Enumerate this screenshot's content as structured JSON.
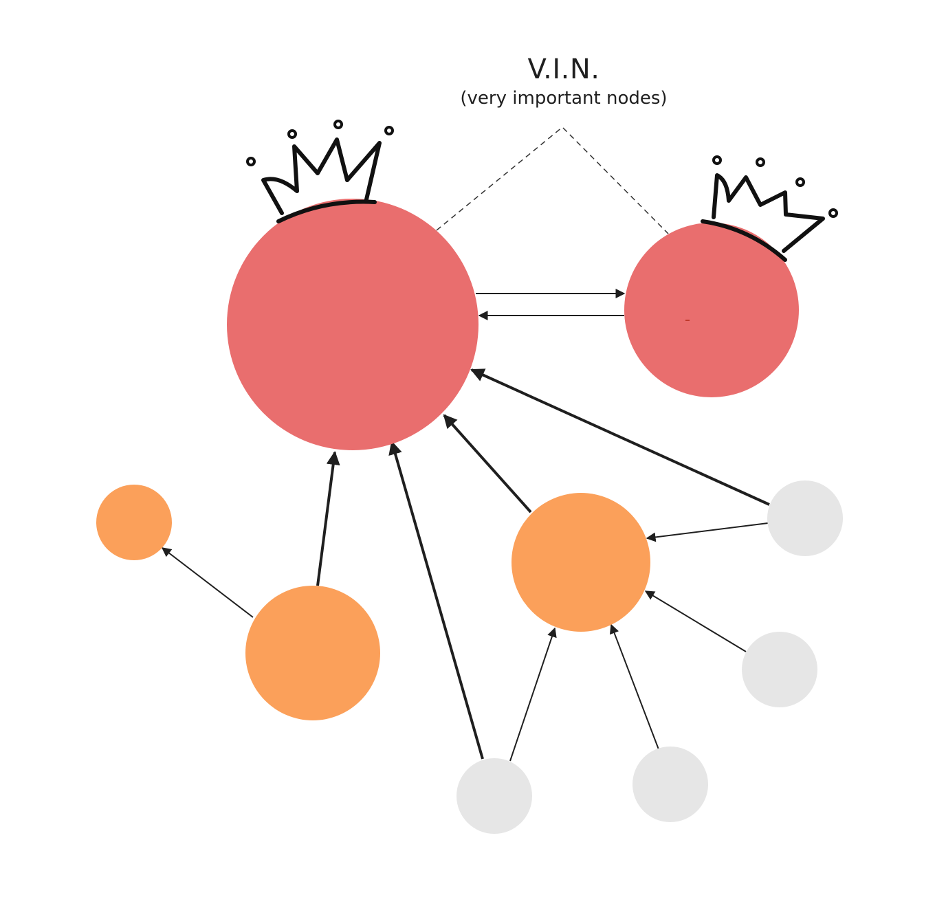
{
  "annotation": {
    "title": "V.I.N.",
    "subtitle": "(very important nodes)"
  },
  "colors": {
    "vip": "#e96e6e",
    "mid": "#fba05a",
    "leaf": "#e6e6e6",
    "edge": "#1f1f1f",
    "crown": "#111111"
  },
  "nodes": [
    {
      "id": "vip-large",
      "tier": "vip",
      "crown": true
    },
    {
      "id": "vip-small",
      "tier": "vip",
      "crown": true
    },
    {
      "id": "mid-far-left",
      "tier": "mid"
    },
    {
      "id": "mid-left",
      "tier": "mid"
    },
    {
      "id": "mid-center",
      "tier": "mid"
    },
    {
      "id": "leaf-right-top",
      "tier": "leaf"
    },
    {
      "id": "leaf-right-mid",
      "tier": "leaf"
    },
    {
      "id": "leaf-bottom-right",
      "tier": "leaf"
    },
    {
      "id": "leaf-bottom-left",
      "tier": "leaf"
    }
  ],
  "edges": [
    {
      "from": "vip-large",
      "to": "vip-small",
      "weight": "thin"
    },
    {
      "from": "vip-small",
      "to": "vip-large",
      "weight": "thin"
    },
    {
      "from": "mid-left",
      "to": "vip-large",
      "weight": "thick"
    },
    {
      "from": "leaf-bottom-left",
      "to": "vip-large",
      "weight": "thick"
    },
    {
      "from": "mid-center",
      "to": "vip-large",
      "weight": "thick"
    },
    {
      "from": "leaf-right-top",
      "to": "vip-large",
      "weight": "thick"
    },
    {
      "from": "mid-left",
      "to": "mid-far-left",
      "weight": "thin"
    },
    {
      "from": "leaf-right-top",
      "to": "mid-center",
      "weight": "thin"
    },
    {
      "from": "leaf-right-mid",
      "to": "mid-center",
      "weight": "thin"
    },
    {
      "from": "leaf-bottom-left",
      "to": "mid-center",
      "weight": "thin"
    },
    {
      "from": "leaf-bottom-right",
      "to": "mid-center",
      "weight": "thin"
    }
  ]
}
